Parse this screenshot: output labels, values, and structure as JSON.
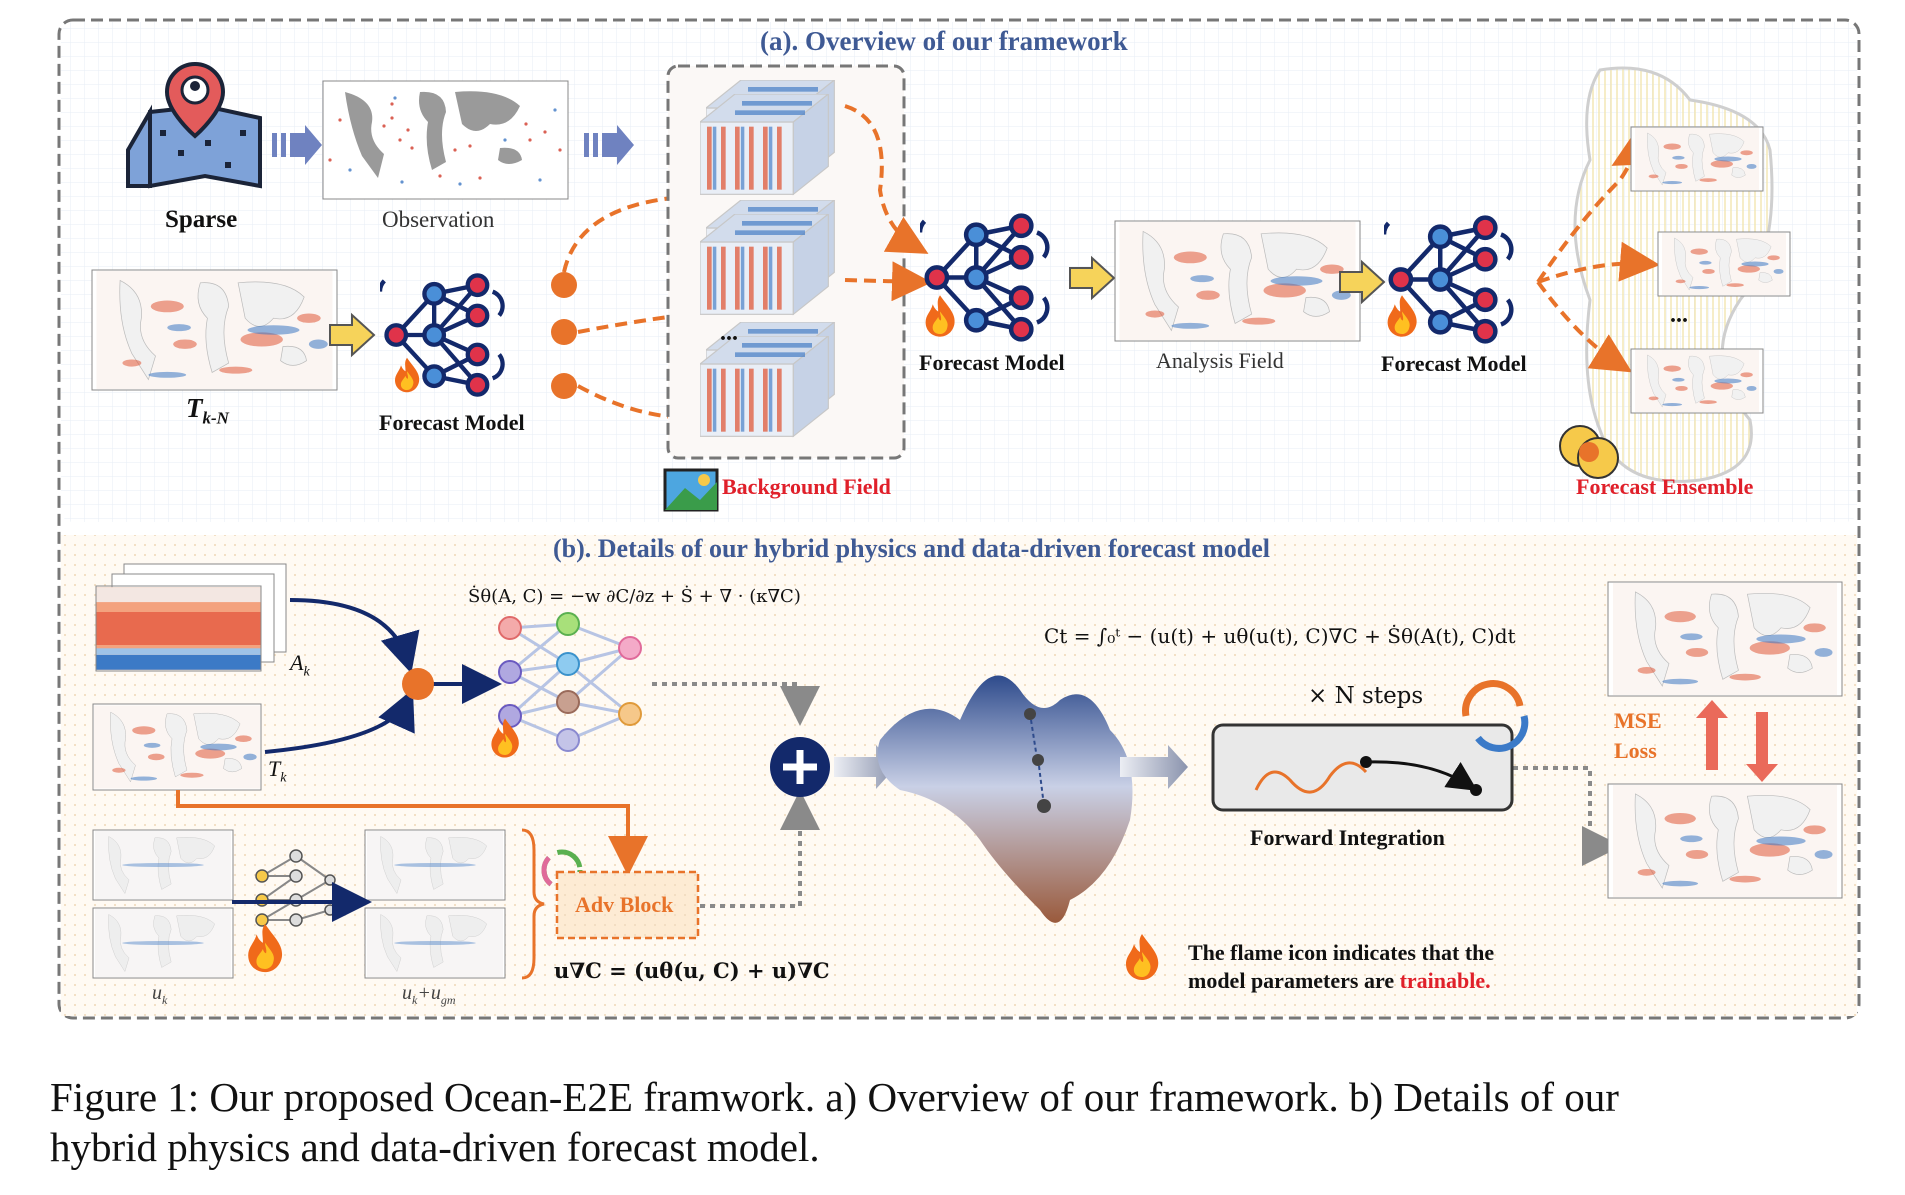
{
  "section_a": {
    "title": "(a). Overview of our framework",
    "sparse": "Sparse",
    "observation": "Observation",
    "t_k_n": "T",
    "t_k_n_sub": "k-N",
    "forecast_model_1": "Forecast Model",
    "ellipsis": "...",
    "background_field": "Background Field",
    "forecast_model_2": "Forecast Model",
    "analysis_field": "Analysis Field",
    "forecast_model_3": "Forecast Model",
    "ensemble_ellipsis": "...",
    "forecast_ensemble": "Forecast Ensemble"
  },
  "section_b": {
    "title": "(b). Details of our hybrid physics and data-driven forecast model",
    "a_k": "A",
    "a_k_sub": "k",
    "t_k": "T",
    "t_k_sub": "k",
    "u_k": "u",
    "u_k_sub": "k",
    "u_k_ugm": "u",
    "u_k_ugm_sub1": "k",
    "u_k_ugm_plus": "+u",
    "u_k_ugm_sub2": "gm",
    "source_eq": "Ṡθ(A, C) = −w ∂C/∂z + Ṡ + ∇ · (κ∇C)",
    "integral_eq": "Ct = ∫₀ᵗ − (u(t) + uθ(u(t), C)∇C + Ṡθ(A(t), C)dt",
    "adv_block": "Adv Block",
    "adv_eq": "u∇C = (uθ(u, C) + u)∇C",
    "n_steps": "× N steps",
    "forward_integration": "Forward Integration",
    "mse_loss_1": "MSE",
    "mse_loss_2": "Loss",
    "flame_note_1": "The flame icon indicates that the",
    "flame_note_2": "model parameters are",
    "flame_note_trainable": "trainable."
  },
  "caption": {
    "line1": "Figure 1: Our proposed Ocean-E2E framwork. a) Overview of our framework. b) Details of our",
    "line2": "hybrid physics and data-driven forecast model."
  },
  "colors": {
    "section_title": "#3f5a94",
    "highlight_red": "#e0202a",
    "orange_arrow": "#e8732a",
    "navy": "#13296b",
    "node_red": "#e0334a",
    "node_blue": "#4a8fd8"
  }
}
